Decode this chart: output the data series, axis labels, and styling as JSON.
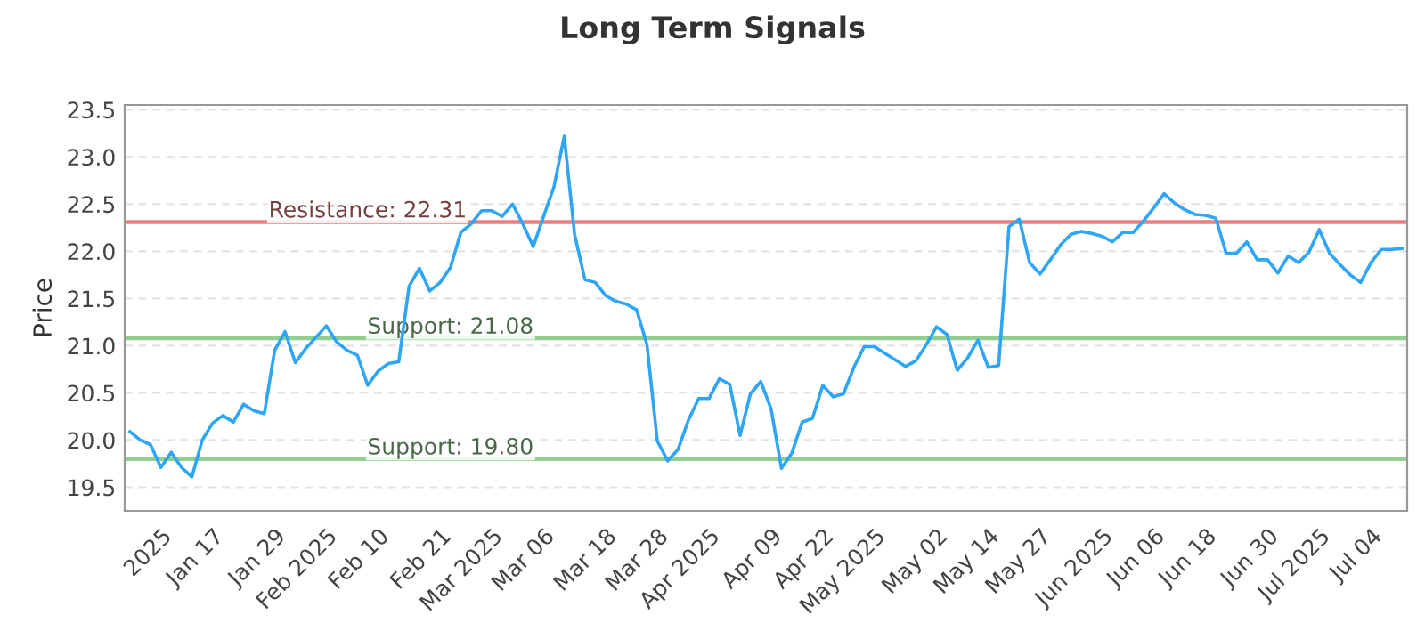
{
  "chart_data": {
    "type": "line",
    "title": "Long Term Signals",
    "ylabel": "Price",
    "categories": [
      null,
      null,
      null,
      "2025",
      null,
      null,
      null,
      null,
      "Jan 17",
      null,
      null,
      null,
      null,
      null,
      "Jan 29",
      null,
      null,
      null,
      null,
      "Feb 2025",
      null,
      null,
      null,
      null,
      "Feb 10",
      null,
      null,
      null,
      null,
      null,
      "Feb 21",
      null,
      null,
      null,
      null,
      "Mar 2025",
      null,
      null,
      null,
      null,
      "Mar 06",
      null,
      null,
      null,
      null,
      null,
      "Mar 18",
      null,
      null,
      null,
      null,
      "Mar 28",
      null,
      null,
      null,
      null,
      "Apr 2025",
      null,
      null,
      null,
      null,
      null,
      "Apr 09",
      null,
      null,
      null,
      null,
      "Apr 22",
      null,
      null,
      null,
      null,
      "May 2025",
      null,
      null,
      null,
      null,
      null,
      "May 02",
      null,
      null,
      null,
      null,
      "May 14",
      null,
      null,
      null,
      null,
      "May 27",
      null,
      null,
      null,
      null,
      null,
      "Jun 2025",
      null,
      null,
      null,
      null,
      "Jun 06",
      null,
      null,
      null,
      null,
      "Jun 18",
      null,
      null,
      null,
      null,
      null,
      "Jun 30",
      null,
      null,
      null,
      null,
      "Jul 2025",
      null,
      null,
      null,
      null,
      "Jul 04",
      null,
      null,
      null
    ],
    "series": [
      {
        "color": "#2ea6f5",
        "values": [
          20.09,
          20.0,
          19.95,
          19.71,
          19.87,
          19.71,
          19.61,
          20.0,
          20.18,
          20.26,
          20.19,
          20.38,
          20.31,
          20.28,
          20.95,
          21.15,
          20.82,
          20.97,
          21.09,
          21.21,
          21.04,
          20.95,
          20.9,
          20.58,
          20.73,
          20.81,
          20.83,
          21.63,
          21.82,
          21.58,
          21.67,
          21.83,
          22.2,
          22.29,
          22.43,
          22.43,
          22.37,
          22.5,
          22.29,
          22.05,
          22.37,
          22.68,
          23.22,
          22.18,
          21.7,
          21.67,
          21.53,
          21.47,
          21.44,
          21.38,
          21.01,
          19.99,
          19.78,
          19.9,
          20.21,
          20.44,
          20.44,
          20.65,
          20.59,
          20.05,
          20.49,
          20.62,
          20.33,
          19.7,
          19.86,
          20.19,
          20.23,
          20.58,
          20.46,
          20.49,
          20.77,
          20.99,
          20.99,
          20.92,
          20.85,
          20.78,
          20.84,
          21.01,
          21.2,
          21.12,
          20.74,
          20.87,
          21.06,
          20.77,
          20.79,
          22.26,
          22.34,
          21.88,
          21.76,
          21.91,
          22.07,
          22.18,
          22.21,
          22.19,
          22.16,
          22.1,
          22.2,
          22.2,
          22.32,
          22.46,
          22.61,
          22.51,
          22.44,
          22.39,
          22.38,
          22.35,
          21.98,
          21.98,
          22.1,
          21.91,
          21.91,
          21.77,
          21.95,
          21.88,
          21.99,
          22.23,
          21.98,
          21.86,
          21.75,
          21.67,
          21.88,
          22.02,
          22.02,
          22.03
        ]
      }
    ],
    "ylim": [
      19.25,
      23.55
    ],
    "yticks": [
      19.5,
      {
        "value": 20,
        "label": "20.0"
      },
      20.5,
      {
        "value": 21,
        "label": "21.0"
      },
      21.5,
      {
        "value": 22,
        "label": "22.0"
      },
      22.5,
      {
        "value": 23,
        "label": "23.0"
      },
      23.5
    ],
    "grid": "y",
    "marker": "none",
    "line_style": "solid",
    "ref_lines": [
      {
        "axis": "y",
        "value": 22.31,
        "label": "Resistance: 22.31",
        "color": "#e88080"
      },
      {
        "axis": "y",
        "value": 21.08,
        "label": "Support: 21.08",
        "color": "#8fd08f"
      },
      {
        "axis": "y",
        "value": 19.8,
        "label": "Support: 19.80",
        "color": "#8fd08f"
      }
    ]
  }
}
